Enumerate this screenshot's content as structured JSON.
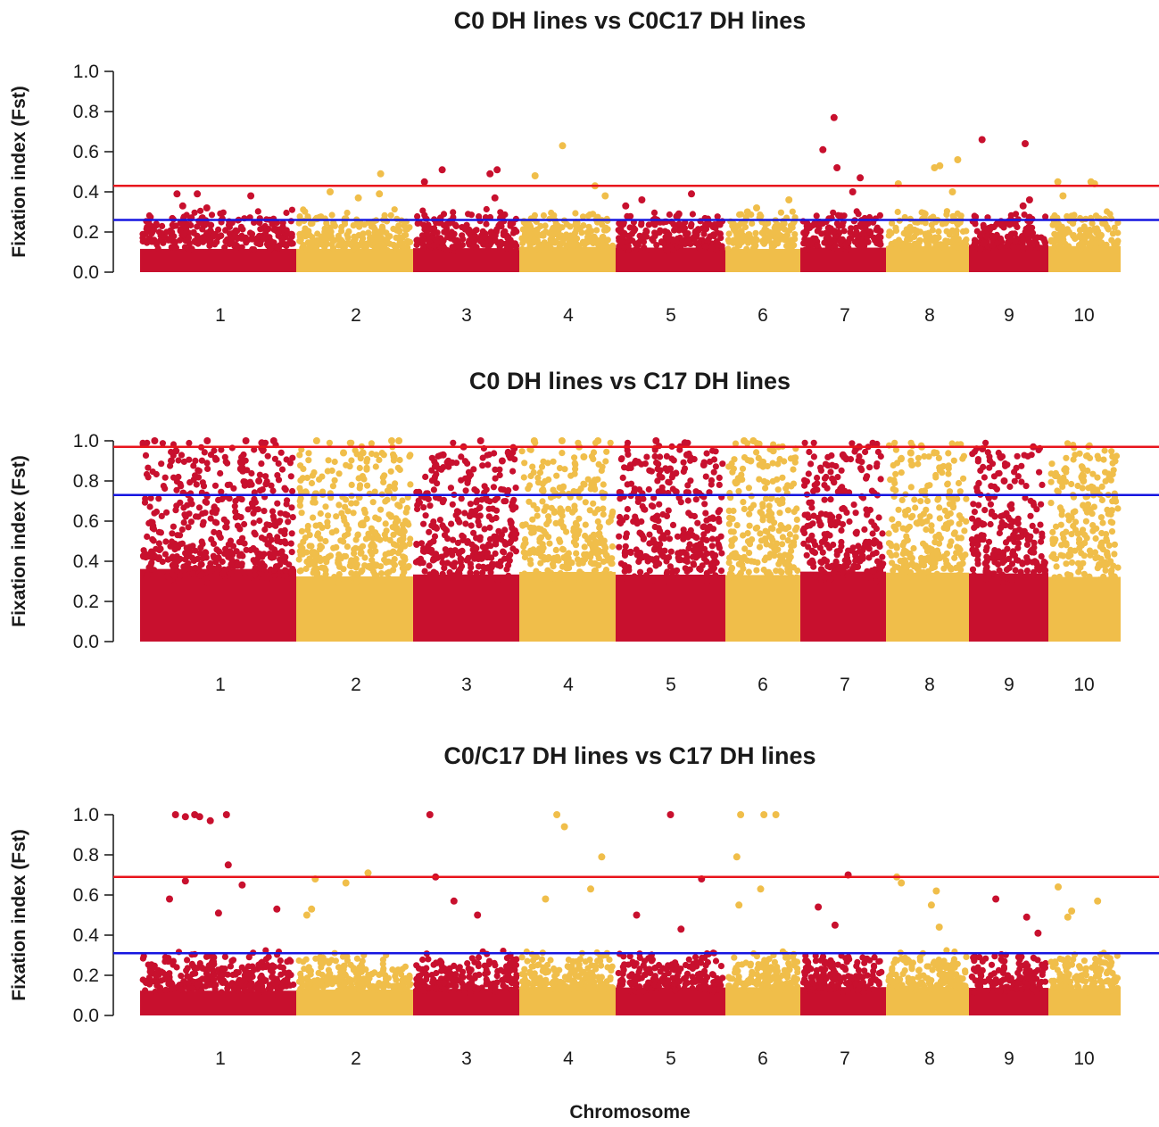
{
  "chart_data": {
    "type": "scatter",
    "subtype": "manhattan",
    "xlabel": "Chromosome",
    "ylabel": "Fixation index (Fst)",
    "ylim": [
      0,
      1
    ],
    "yticks": [
      "0.0",
      "0.2",
      "0.4",
      "0.6",
      "0.8",
      "1.0"
    ],
    "chromosomes": [
      "1",
      "2",
      "3",
      "4",
      "5",
      "6",
      "7",
      "8",
      "9",
      "10"
    ],
    "chromosome_colors": [
      "#c8102e",
      "#f0be4a",
      "#c8102e",
      "#f0be4a",
      "#c8102e",
      "#f0be4a",
      "#c8102e",
      "#f0be4a",
      "#c8102e",
      "#f0be4a"
    ],
    "colors": {
      "odd_chromosome": "#c8102e",
      "even_chromosome": "#f0be4a",
      "red_threshold": "#e8141c",
      "blue_threshold": "#1616e0"
    },
    "panels": [
      {
        "title": "C0 DH lines vs C0C17 DH lines",
        "red_threshold": 0.43,
        "blue_threshold": 0.26,
        "base_level": 0.21,
        "top_markers": [
          {
            "chr": "1",
            "fst": 0.39
          },
          {
            "chr": "1",
            "fst": 0.39
          },
          {
            "chr": "1",
            "fst": 0.38
          },
          {
            "chr": "1",
            "fst": 0.33
          },
          {
            "chr": "1",
            "fst": 0.32
          },
          {
            "chr": "2",
            "fst": 0.49
          },
          {
            "chr": "2",
            "fst": 0.4
          },
          {
            "chr": "2",
            "fst": 0.39
          },
          {
            "chr": "2",
            "fst": 0.37
          },
          {
            "chr": "3",
            "fst": 0.51
          },
          {
            "chr": "3",
            "fst": 0.51
          },
          {
            "chr": "3",
            "fst": 0.49
          },
          {
            "chr": "3",
            "fst": 0.45
          },
          {
            "chr": "3",
            "fst": 0.37
          },
          {
            "chr": "4",
            "fst": 0.63
          },
          {
            "chr": "4",
            "fst": 0.48
          },
          {
            "chr": "4",
            "fst": 0.43
          },
          {
            "chr": "4",
            "fst": 0.38
          },
          {
            "chr": "5",
            "fst": 0.39
          },
          {
            "chr": "5",
            "fst": 0.36
          },
          {
            "chr": "5",
            "fst": 0.33
          },
          {
            "chr": "5",
            "fst": 0.29
          },
          {
            "chr": "6",
            "fst": 0.36
          },
          {
            "chr": "6",
            "fst": 0.32
          },
          {
            "chr": "6",
            "fst": 0.3
          },
          {
            "chr": "7",
            "fst": 0.77
          },
          {
            "chr": "7",
            "fst": 0.61
          },
          {
            "chr": "7",
            "fst": 0.52
          },
          {
            "chr": "7",
            "fst": 0.47
          },
          {
            "chr": "7",
            "fst": 0.4
          },
          {
            "chr": "8",
            "fst": 0.56
          },
          {
            "chr": "8",
            "fst": 0.53
          },
          {
            "chr": "8",
            "fst": 0.52
          },
          {
            "chr": "8",
            "fst": 0.44
          },
          {
            "chr": "8",
            "fst": 0.4
          },
          {
            "chr": "9",
            "fst": 0.66
          },
          {
            "chr": "9",
            "fst": 0.64
          },
          {
            "chr": "9",
            "fst": 0.36
          },
          {
            "chr": "9",
            "fst": 0.33
          },
          {
            "chr": "10",
            "fst": 0.45
          },
          {
            "chr": "10",
            "fst": 0.45
          },
          {
            "chr": "10",
            "fst": 0.44
          },
          {
            "chr": "10",
            "fst": 0.38
          }
        ]
      },
      {
        "title": "C0 DH lines vs C17 DH lines",
        "red_threshold": 0.97,
        "blue_threshold": 0.73,
        "base_level": 0.58,
        "top_markers": [
          {
            "chr": "1",
            "fst": 1.0
          },
          {
            "chr": "1",
            "fst": 1.0
          },
          {
            "chr": "1",
            "fst": 1.0
          },
          {
            "chr": "1",
            "fst": 1.0
          },
          {
            "chr": "1",
            "fst": 0.99
          },
          {
            "chr": "1",
            "fst": 0.95
          },
          {
            "chr": "1",
            "fst": 0.9
          },
          {
            "chr": "1",
            "fst": 0.86
          },
          {
            "chr": "1",
            "fst": 0.85
          },
          {
            "chr": "1",
            "fst": 0.8
          },
          {
            "chr": "2",
            "fst": 1.0
          },
          {
            "chr": "2",
            "fst": 1.0
          },
          {
            "chr": "2",
            "fst": 1.0
          },
          {
            "chr": "2",
            "fst": 0.94
          },
          {
            "chr": "2",
            "fst": 0.94
          },
          {
            "chr": "2",
            "fst": 0.92
          },
          {
            "chr": "3",
            "fst": 1.0
          },
          {
            "chr": "3",
            "fst": 0.97
          },
          {
            "chr": "3",
            "fst": 0.93
          },
          {
            "chr": "3",
            "fst": 0.9
          },
          {
            "chr": "3",
            "fst": 0.88
          },
          {
            "chr": "4",
            "fst": 1.0
          },
          {
            "chr": "4",
            "fst": 1.0
          },
          {
            "chr": "4",
            "fst": 1.0
          },
          {
            "chr": "4",
            "fst": 0.97
          },
          {
            "chr": "4",
            "fst": 0.92
          },
          {
            "chr": "5",
            "fst": 1.0
          },
          {
            "chr": "5",
            "fst": 0.99
          },
          {
            "chr": "5",
            "fst": 0.93
          },
          {
            "chr": "5",
            "fst": 0.88
          },
          {
            "chr": "5",
            "fst": 0.86
          },
          {
            "chr": "6",
            "fst": 1.0
          },
          {
            "chr": "6",
            "fst": 1.0
          },
          {
            "chr": "6",
            "fst": 0.95
          },
          {
            "chr": "6",
            "fst": 0.9
          },
          {
            "chr": "7",
            "fst": 0.97
          },
          {
            "chr": "7",
            "fst": 0.96
          },
          {
            "chr": "7",
            "fst": 0.93
          },
          {
            "chr": "7",
            "fst": 0.92
          },
          {
            "chr": "7",
            "fst": 0.91
          },
          {
            "chr": "8",
            "fst": 0.97
          },
          {
            "chr": "8",
            "fst": 0.94
          },
          {
            "chr": "8",
            "fst": 0.91
          },
          {
            "chr": "8",
            "fst": 0.88
          },
          {
            "chr": "9",
            "fst": 0.97
          },
          {
            "chr": "9",
            "fst": 0.96
          },
          {
            "chr": "9",
            "fst": 0.8
          },
          {
            "chr": "10",
            "fst": 0.82
          },
          {
            "chr": "10",
            "fst": 0.8
          },
          {
            "chr": "10",
            "fst": 0.77
          }
        ]
      },
      {
        "title": "C0/C17 DH lines vs C17 DH lines",
        "red_threshold": 0.69,
        "blue_threshold": 0.31,
        "base_level": 0.22,
        "top_markers": [
          {
            "chr": "1",
            "fst": 1.0
          },
          {
            "chr": "1",
            "fst": 1.0
          },
          {
            "chr": "1",
            "fst": 1.0
          },
          {
            "chr": "1",
            "fst": 0.99
          },
          {
            "chr": "1",
            "fst": 0.99
          },
          {
            "chr": "1",
            "fst": 0.97
          },
          {
            "chr": "1",
            "fst": 0.75
          },
          {
            "chr": "1",
            "fst": 0.67
          },
          {
            "chr": "1",
            "fst": 0.65
          },
          {
            "chr": "1",
            "fst": 0.58
          },
          {
            "chr": "1",
            "fst": 0.53
          },
          {
            "chr": "1",
            "fst": 0.51
          },
          {
            "chr": "2",
            "fst": 0.71
          },
          {
            "chr": "2",
            "fst": 0.68
          },
          {
            "chr": "2",
            "fst": 0.66
          },
          {
            "chr": "2",
            "fst": 0.53
          },
          {
            "chr": "2",
            "fst": 0.5
          },
          {
            "chr": "3",
            "fst": 1.0
          },
          {
            "chr": "3",
            "fst": 0.69
          },
          {
            "chr": "3",
            "fst": 0.57
          },
          {
            "chr": "3",
            "fst": 0.5
          },
          {
            "chr": "4",
            "fst": 1.0
          },
          {
            "chr": "4",
            "fst": 0.94
          },
          {
            "chr": "4",
            "fst": 0.79
          },
          {
            "chr": "4",
            "fst": 0.63
          },
          {
            "chr": "4",
            "fst": 0.58
          },
          {
            "chr": "5",
            "fst": 1.0
          },
          {
            "chr": "5",
            "fst": 0.68
          },
          {
            "chr": "5",
            "fst": 0.5
          },
          {
            "chr": "5",
            "fst": 0.43
          },
          {
            "chr": "6",
            "fst": 1.0
          },
          {
            "chr": "6",
            "fst": 1.0
          },
          {
            "chr": "6",
            "fst": 1.0
          },
          {
            "chr": "6",
            "fst": 0.79
          },
          {
            "chr": "6",
            "fst": 0.63
          },
          {
            "chr": "6",
            "fst": 0.55
          },
          {
            "chr": "7",
            "fst": 0.7
          },
          {
            "chr": "7",
            "fst": 0.54
          },
          {
            "chr": "7",
            "fst": 0.45
          },
          {
            "chr": "8",
            "fst": 0.69
          },
          {
            "chr": "8",
            "fst": 0.66
          },
          {
            "chr": "8",
            "fst": 0.62
          },
          {
            "chr": "8",
            "fst": 0.55
          },
          {
            "chr": "8",
            "fst": 0.44
          },
          {
            "chr": "9",
            "fst": 0.58
          },
          {
            "chr": "9",
            "fst": 0.49
          },
          {
            "chr": "9",
            "fst": 0.41
          },
          {
            "chr": "10",
            "fst": 0.64
          },
          {
            "chr": "10",
            "fst": 0.57
          },
          {
            "chr": "10",
            "fst": 0.52
          },
          {
            "chr": "10",
            "fst": 0.49
          }
        ]
      }
    ]
  }
}
